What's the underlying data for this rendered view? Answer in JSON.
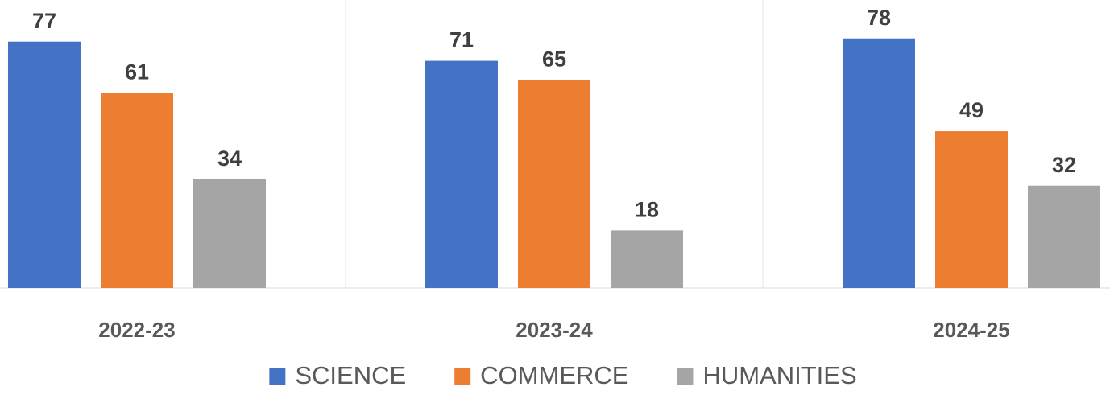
{
  "chart_data": {
    "type": "bar",
    "categories": [
      "2022-23",
      "2023-24",
      "2024-25"
    ],
    "series": [
      {
        "name": "SCIENCE",
        "color": "#4472c4",
        "values": [
          77,
          71,
          78
        ]
      },
      {
        "name": "COMMERCE",
        "color": "#ed7d31",
        "values": [
          61,
          65,
          49
        ]
      },
      {
        "name": "HUMANITIES",
        "color": "#a5a5a5",
        "values": [
          34,
          18,
          32
        ]
      }
    ],
    "ylim": [
      0,
      90
    ],
    "legend": "bottom"
  }
}
